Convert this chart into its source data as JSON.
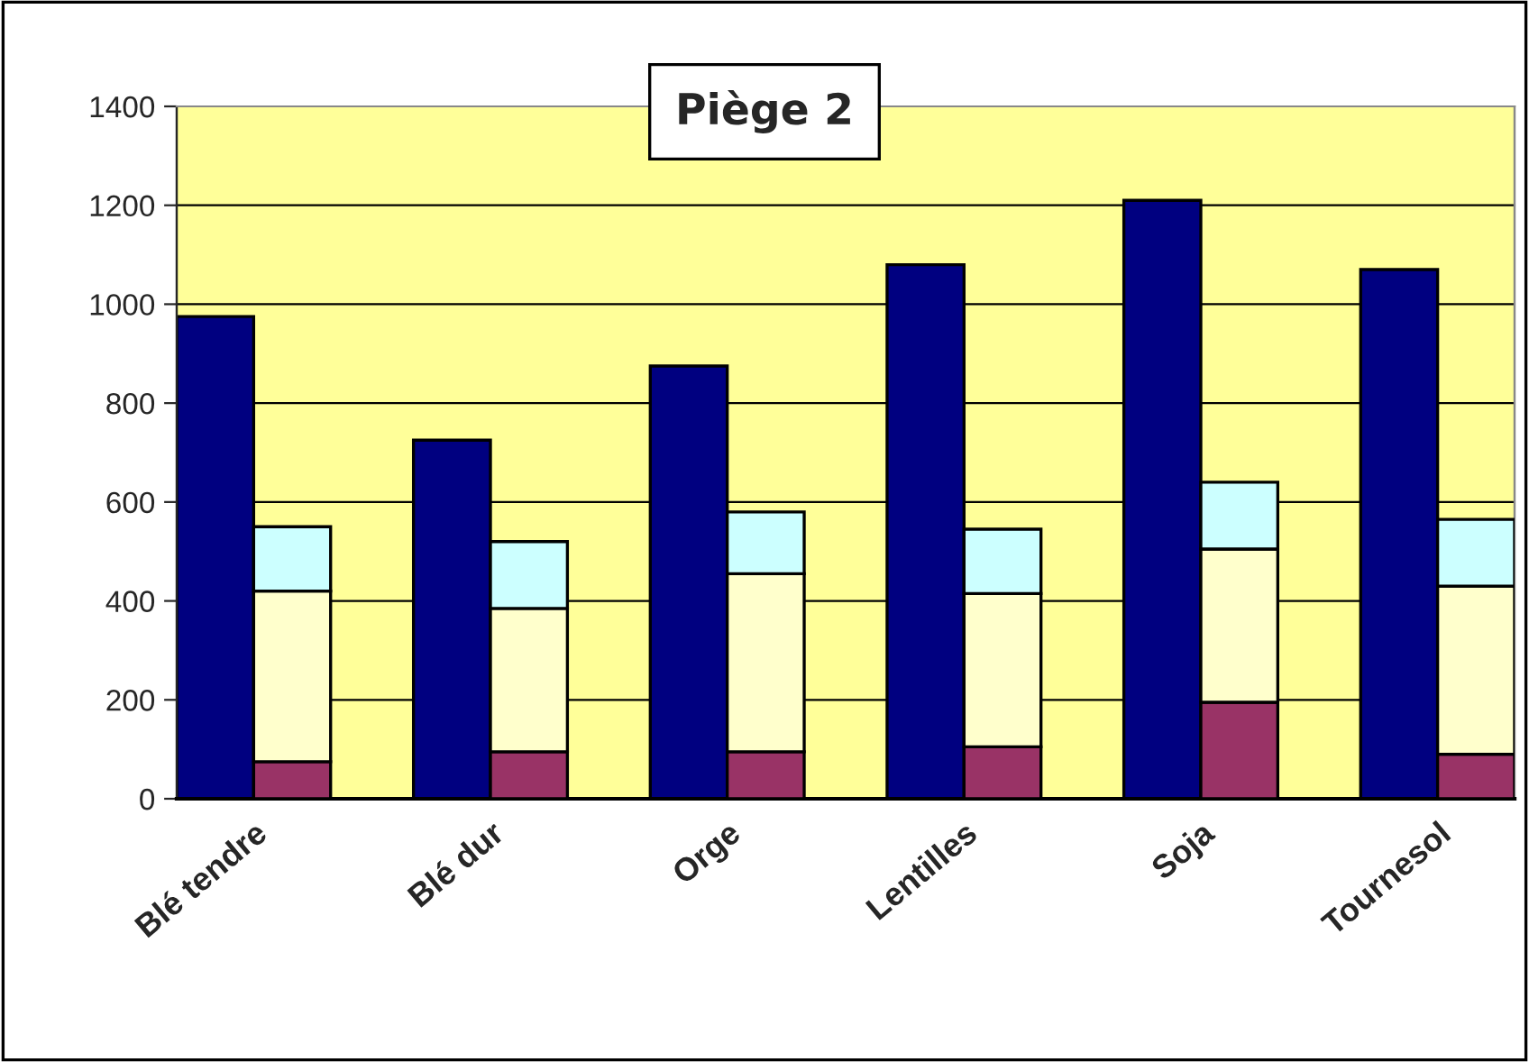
{
  "chart_data": [
    {
      "type": "bar",
      "title": "Piège 2",
      "categories": [
        "Blé tendre",
        "Blé dur",
        "Orge",
        "Lentilles",
        "Soja",
        "Tournesol"
      ],
      "series": [
        {
          "color": "#000080",
          "values": [
            975,
            725,
            875,
            1080,
            1210,
            1070
          ]
        }
      ],
      "ylim": [
        0,
        1400
      ],
      "yticks": [
        0,
        200,
        400,
        600,
        800,
        1000,
        1200,
        1400
      ],
      "grid": "y"
    },
    {
      "type": "bar",
      "categories": [
        null,
        null,
        null,
        null,
        null,
        null
      ],
      "stacked": true,
      "series": [
        {
          "color": "#993366",
          "values": [
            75,
            95,
            95,
            105,
            195,
            90
          ]
        },
        {
          "color": "#ffffcc",
          "values": [
            345,
            290,
            360,
            310,
            310,
            340
          ]
        },
        {
          "color": "#ccffff",
          "values": [
            130,
            135,
            125,
            130,
            135,
            135
          ]
        }
      ],
      "ylim": [
        0,
        1400
      ],
      "yticks": [
        0,
        200,
        400,
        600,
        800,
        1000,
        1200,
        1400
      ],
      "tick_labels": false
    }
  ]
}
